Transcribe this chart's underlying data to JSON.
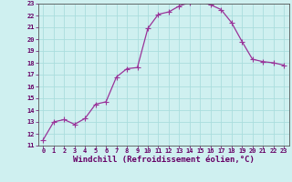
{
  "x": [
    0,
    1,
    2,
    3,
    4,
    5,
    6,
    7,
    8,
    9,
    10,
    11,
    12,
    13,
    14,
    15,
    16,
    17,
    18,
    19,
    20,
    21,
    22,
    23
  ],
  "y": [
    11.5,
    13.0,
    13.2,
    12.8,
    13.3,
    14.5,
    14.7,
    16.8,
    17.5,
    17.6,
    20.9,
    22.1,
    22.3,
    22.8,
    23.1,
    23.2,
    22.9,
    22.5,
    21.4,
    19.8,
    18.3,
    18.1,
    18.0,
    17.8
  ],
  "line_color": "#993399",
  "marker": "+",
  "marker_size": 4,
  "bg_color": "#cff0f0",
  "grid_color": "#aadddd",
  "xlabel": "Windchill (Refroidissement éolien,°C)",
  "xlim_min": -0.5,
  "xlim_max": 23.5,
  "ylim_min": 11,
  "ylim_max": 23,
  "xticks": [
    0,
    1,
    2,
    3,
    4,
    5,
    6,
    7,
    8,
    9,
    10,
    11,
    12,
    13,
    14,
    15,
    16,
    17,
    18,
    19,
    20,
    21,
    22,
    23
  ],
  "yticks": [
    11,
    12,
    13,
    14,
    15,
    16,
    17,
    18,
    19,
    20,
    21,
    22,
    23
  ],
  "tick_fontsize": 5.0,
  "xlabel_fontsize": 6.5
}
